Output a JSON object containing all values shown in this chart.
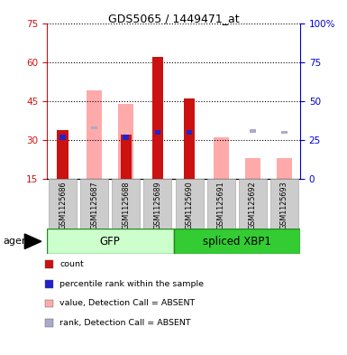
{
  "title": "GDS5065 / 1449471_at",
  "samples": [
    "GSM1125686",
    "GSM1125687",
    "GSM1125688",
    "GSM1125689",
    "GSM1125690",
    "GSM1125691",
    "GSM1125692",
    "GSM1125693"
  ],
  "count_values": [
    34,
    null,
    32,
    62,
    46,
    null,
    null,
    null
  ],
  "percentile_rank": [
    31,
    null,
    31,
    33,
    33,
    null,
    null,
    null
  ],
  "absent_value": [
    null,
    49,
    44,
    null,
    null,
    31,
    23,
    23
  ],
  "absent_rank": [
    null,
    33,
    null,
    null,
    null,
    null,
    31,
    30
  ],
  "ylim_left": [
    15,
    75
  ],
  "ylim_right": [
    0,
    100
  ],
  "yticks_left": [
    15,
    30,
    45,
    60,
    75
  ],
  "yticks_right": [
    0,
    25,
    50,
    75,
    100
  ],
  "yticklabels_right": [
    "0",
    "25",
    "50",
    "75",
    "100%"
  ],
  "bar_width": 0.35,
  "count_color": "#cc1111",
  "percentile_color": "#2222cc",
  "absent_value_color": "#ffaaaa",
  "absent_rank_color": "#aaaacc",
  "gfp_light_color": "#ccffcc",
  "gfp_dark_color": "#44dd44",
  "xbp1_dark_color": "#33cc33",
  "group_edge_color": "#228822",
  "left_axis_color": "#cc1111",
  "right_axis_color": "#0000cc",
  "sample_box_color": "#cccccc",
  "sample_box_edge": "#aaaaaa",
  "legend_items": [
    {
      "color": "#cc1111",
      "label": "count"
    },
    {
      "color": "#2222cc",
      "label": "percentile rank within the sample"
    },
    {
      "color": "#ffaaaa",
      "label": "value, Detection Call = ABSENT"
    },
    {
      "color": "#aaaacc",
      "label": "rank, Detection Call = ABSENT"
    }
  ]
}
